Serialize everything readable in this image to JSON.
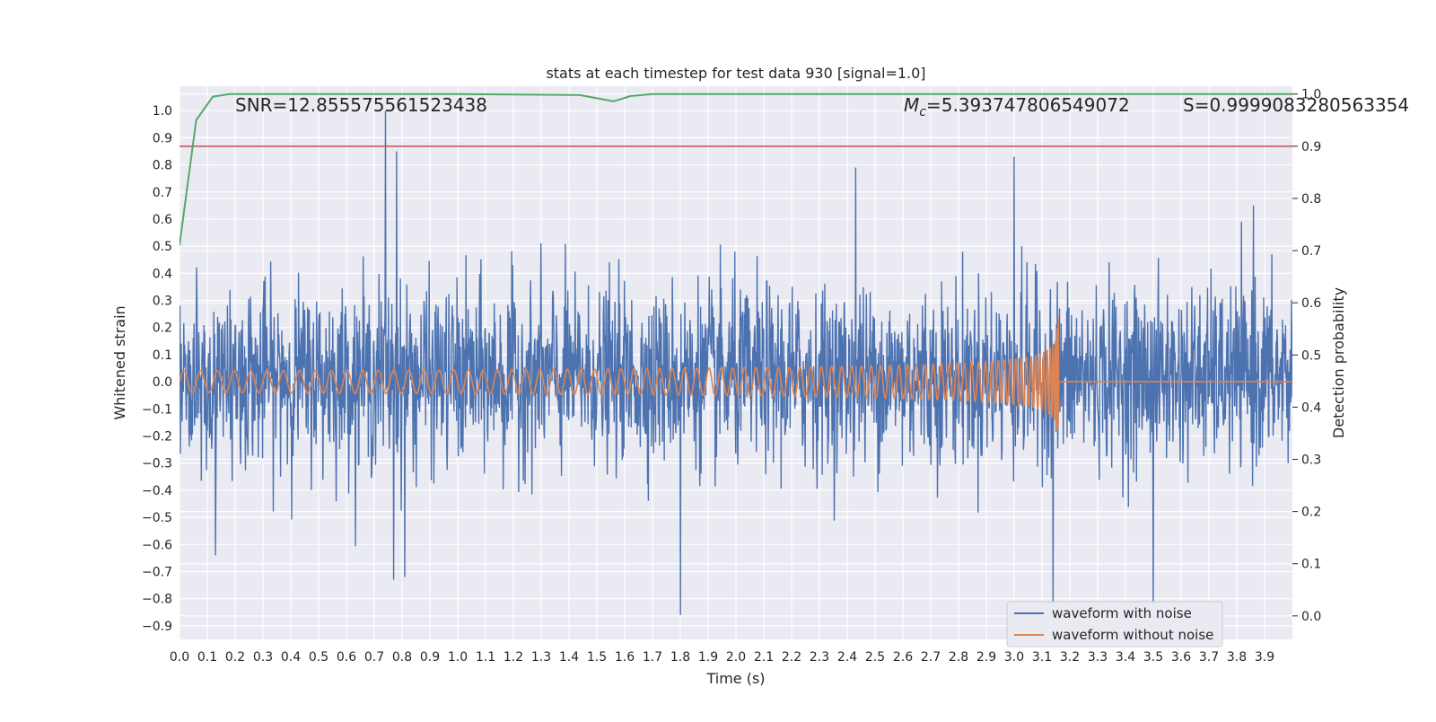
{
  "chart_data": {
    "type": "line",
    "title": "stats at each timestep for test data 930 [signal=1.0]",
    "xlabel": "Time (s)",
    "ylabel_left": "Whitened strain",
    "ylabel_right": "Detection probability",
    "xlim": [
      0.0,
      4.0
    ],
    "ylim_left": [
      -0.95,
      1.09
    ],
    "ylim_right": [
      -0.045,
      1.015
    ],
    "x_ticks": [
      0.0,
      0.1,
      0.2,
      0.3,
      0.4,
      0.5,
      0.6,
      0.7,
      0.8,
      0.9,
      1.0,
      1.1,
      1.2,
      1.3,
      1.4,
      1.5,
      1.6,
      1.7,
      1.8,
      1.9,
      2.0,
      2.1,
      2.2,
      2.3,
      2.4,
      2.5,
      2.6,
      2.7,
      2.8,
      2.9,
      3.0,
      3.1,
      3.2,
      3.3,
      3.4,
      3.5,
      3.6,
      3.7,
      3.8,
      3.9
    ],
    "x_tick_labels": [
      "0.0",
      "0.1",
      "0.2",
      "0.3",
      "0.4",
      "0.5",
      "0.6",
      "0.7",
      "0.8",
      "0.9",
      "1.0",
      "1.1",
      "1.2",
      "1.3",
      "1.4",
      "1.5",
      "1.6",
      "1.7",
      "1.8",
      "1.9",
      "2.0",
      "2.1",
      "2.2",
      "2.3",
      "2.4",
      "2.5",
      "2.6",
      "2.7",
      "2.8",
      "2.9",
      "3.0",
      "3.1",
      "3.2",
      "3.3",
      "3.4",
      "3.5",
      "3.6",
      "3.7",
      "3.8",
      "3.9"
    ],
    "y_left_ticks": [
      1.0,
      0.9,
      0.8,
      0.7,
      0.6,
      0.5,
      0.4,
      0.3,
      0.2,
      0.1,
      0.0,
      -0.1,
      -0.2,
      -0.3,
      -0.4,
      -0.5,
      -0.6,
      -0.7,
      -0.8,
      -0.9
    ],
    "y_left_tick_labels": [
      "1.0",
      "0.9",
      "0.8",
      "0.7",
      "0.6",
      "0.5",
      "0.4",
      "0.3",
      "0.2",
      "0.1",
      "0.0",
      "−0.1",
      "−0.2",
      "−0.3",
      "−0.4",
      "−0.5",
      "−0.6",
      "−0.7",
      "−0.8",
      "−0.9"
    ],
    "y_right_ticks": [
      1.0,
      0.9,
      0.8,
      0.7,
      0.6,
      0.5,
      0.4,
      0.3,
      0.2,
      0.1,
      0.0
    ],
    "y_right_tick_labels": [
      "1.0",
      "0.9",
      "0.8",
      "0.7",
      "0.6",
      "0.5",
      "0.4",
      "0.3",
      "0.2",
      "0.1",
      "0.0"
    ],
    "grid": true,
    "legend_placement": "lower-right",
    "annotations": {
      "snr": "SNR=12.855575561523438",
      "mc_symbol": "M",
      "mc_subscript": "c",
      "mc_value": "=5.393747806549072",
      "s": "S=0.9999083280563354"
    },
    "threshold": {
      "axis": "right",
      "value": 0.9,
      "color": "#c44e52"
    },
    "series": [
      {
        "name": "waveform with noise",
        "axis": "left",
        "color": "#4c72b0",
        "kind": "noisy",
        "envelope_sigma": 0.16,
        "peaks": [
          {
            "x": 0.74,
            "y": 1.0
          },
          {
            "x": 0.78,
            "y": 0.85
          },
          {
            "x": 0.77,
            "y": -0.73
          },
          {
            "x": 0.81,
            "y": -0.72
          },
          {
            "x": 1.8,
            "y": -0.86
          },
          {
            "x": 3.0,
            "y": 0.83
          },
          {
            "x": 3.14,
            "y": -0.85
          },
          {
            "x": 3.5,
            "y": -0.86
          },
          {
            "x": 2.43,
            "y": 0.79
          },
          {
            "x": 0.13,
            "y": -0.64
          },
          {
            "x": 3.86,
            "y": 0.65
          }
        ]
      },
      {
        "name": "waveform without noise",
        "axis": "left",
        "color": "#dd8452",
        "kind": "chirp",
        "merger_time": 3.16,
        "amplitude_start": 0.04,
        "amplitude_peak": 0.3
      },
      {
        "name": "",
        "axis": "right",
        "color": "#55a868",
        "kind": "detection-probability",
        "x": [
          0.0,
          0.06,
          0.12,
          0.18,
          0.25,
          0.5,
          1.0,
          1.44,
          1.5,
          1.56,
          1.62,
          1.7,
          2.0,
          3.0,
          4.0
        ],
        "y": [
          0.71,
          0.95,
          0.995,
          1.0,
          1.0,
          1.0,
          1.0,
          0.998,
          0.992,
          0.986,
          0.996,
          1.0,
          1.0,
          1.0,
          1.0
        ]
      }
    ],
    "colors": {
      "plot_background": "#eaeaf2",
      "grid": "#ffffff",
      "legend_background": "#eaeaf2",
      "legend_border": "#cccccc"
    }
  }
}
